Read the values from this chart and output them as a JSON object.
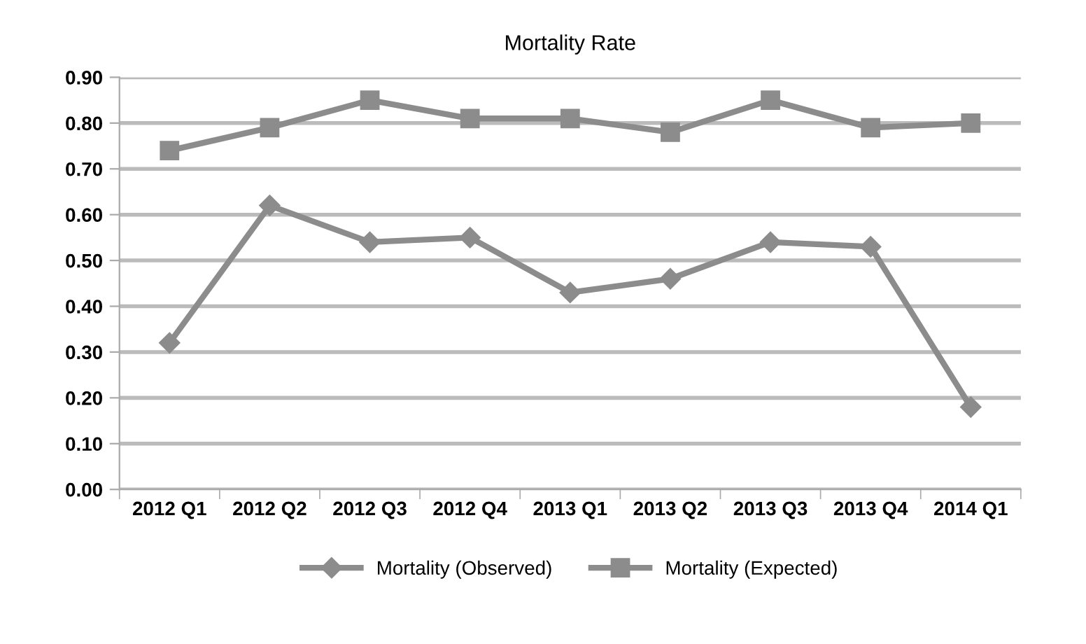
{
  "chart_data": {
    "type": "line",
    "title": "Mortality Rate",
    "categories": [
      "2012 Q1",
      "2012 Q2",
      "2012 Q3",
      "2012 Q4",
      "2013 Q1",
      "2013 Q2",
      "2013 Q3",
      "2013 Q4",
      "2014 Q1"
    ],
    "series": [
      {
        "name": "Mortality (Observed)",
        "color": "#8c8c8c",
        "marker": "diamond",
        "values": [
          0.32,
          0.62,
          0.54,
          0.55,
          0.43,
          0.46,
          0.54,
          0.53,
          0.18
        ]
      },
      {
        "name": "Mortality (Expected)",
        "color": "#8c8c8c",
        "marker": "square",
        "values": [
          0.74,
          0.79,
          0.85,
          0.81,
          0.81,
          0.78,
          0.85,
          0.79,
          0.8
        ]
      }
    ],
    "ylim": [
      0,
      0.9
    ],
    "yticks": [
      {
        "value": 0,
        "label": "0.00"
      },
      {
        "value": 0.1,
        "label": "0.10"
      },
      {
        "value": 0.2,
        "label": "0.20"
      },
      {
        "value": 0.3,
        "label": "0.30"
      },
      {
        "value": 0.4,
        "label": "0.40"
      },
      {
        "value": 0.5,
        "label": "0.50"
      },
      {
        "value": 0.6,
        "label": "0.60"
      },
      {
        "value": 0.7,
        "label": "0.70"
      },
      {
        "value": 0.8,
        "label": "0.80"
      },
      {
        "value": 0.9,
        "label": "0.90"
      }
    ],
    "grid": "y",
    "legend": "bottom",
    "line_style": "solid"
  }
}
